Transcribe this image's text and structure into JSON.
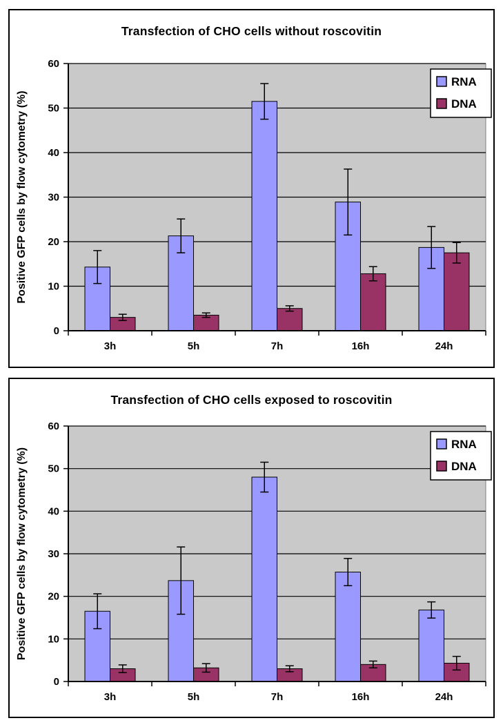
{
  "page": {
    "background": "#ffffff"
  },
  "colors": {
    "rna": "#9999FF",
    "dna": "#993366",
    "plot_bg": "#C9C9C9",
    "plot_border": "#808080",
    "gridline": "#000000",
    "axis": "#000000",
    "panel_bg": "#FFFFFF",
    "panel_border": "#000000",
    "legend_bg": "#FFFFFF",
    "text": "#000000"
  },
  "chart_data": [
    {
      "type": "bar",
      "title": "Transfection of CHO cells without roscovitin",
      "xlabel": "",
      "ylabel": "Positive GFP cells by flow cytometry (%)",
      "categories": [
        "3h",
        "5h",
        "7h",
        "16h",
        "24h"
      ],
      "ylim": [
        0,
        60
      ],
      "yticks": [
        0,
        10,
        20,
        30,
        40,
        50,
        60
      ],
      "grid": true,
      "legend_position": "top-right",
      "error_bars": true,
      "series": [
        {
          "name": "RNA",
          "color": "#9999FF",
          "values": [
            14.3,
            21.3,
            51.5,
            28.9,
            18.7
          ],
          "errors": [
            3.7,
            3.8,
            4.0,
            7.4,
            4.7
          ]
        },
        {
          "name": "DNA",
          "color": "#993366",
          "values": [
            3.0,
            3.5,
            5.0,
            12.8,
            17.5
          ],
          "errors": [
            0.7,
            0.5,
            0.6,
            1.6,
            2.3
          ]
        }
      ]
    },
    {
      "type": "bar",
      "title": "Transfection of CHO cells exposed to roscovitin",
      "xlabel": "",
      "ylabel": "Positive GFP cells by flow cytometry (%)",
      "categories": [
        "3h",
        "5h",
        "7h",
        "16h",
        "24h"
      ],
      "ylim": [
        0,
        60
      ],
      "yticks": [
        0,
        10,
        20,
        30,
        40,
        50,
        60
      ],
      "grid": true,
      "legend_position": "top-right",
      "error_bars": true,
      "series": [
        {
          "name": "RNA",
          "color": "#9999FF",
          "values": [
            16.5,
            23.7,
            48.0,
            25.7,
            16.8
          ],
          "errors": [
            4.1,
            7.9,
            3.5,
            3.2,
            1.9
          ]
        },
        {
          "name": "DNA",
          "color": "#993366",
          "values": [
            3.0,
            3.2,
            3.0,
            4.0,
            4.3
          ],
          "errors": [
            0.9,
            1.0,
            0.7,
            0.8,
            1.6
          ]
        }
      ]
    }
  ]
}
